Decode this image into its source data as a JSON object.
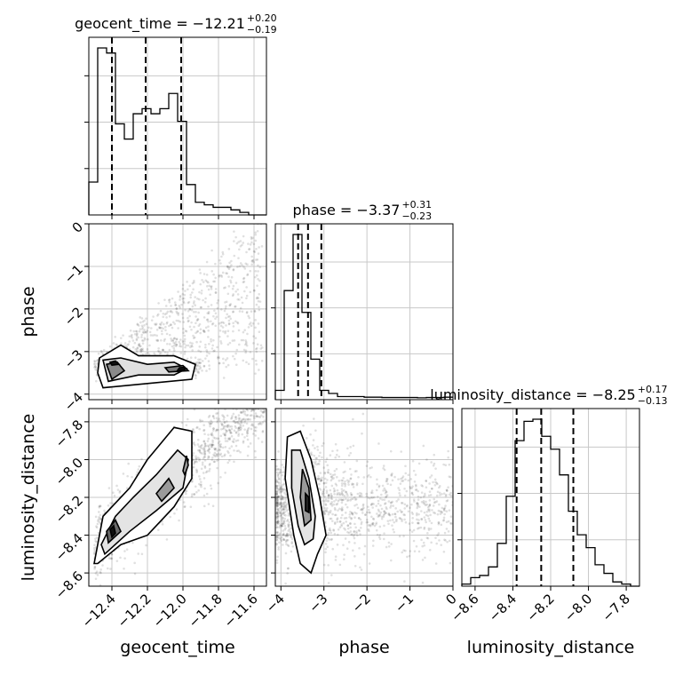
{
  "chart_data": {
    "type": "corner",
    "parameters": [
      "geocent_time",
      "phase",
      "luminosity_distance"
    ],
    "titles": [
      {
        "param": "geocent_time",
        "text": "geocent_time = −12.21",
        "upper": "+0.20",
        "lower": "−0.19"
      },
      {
        "param": "phase",
        "text": "phase = −3.37",
        "upper": "+0.31",
        "lower": "−0.23"
      },
      {
        "param": "luminosity_distance",
        "text": "luminosity_distance = −8.25",
        "upper": "+0.17",
        "lower": "−0.13"
      }
    ],
    "ranges": {
      "geocent_time": [
        -12.53,
        -11.53
      ],
      "phase": [
        -4.13,
        0.0
      ],
      "luminosity_distance": [
        -8.67,
        -7.73
      ]
    },
    "ticks": {
      "geocent_time": [
        -12.4,
        -12.2,
        -12.0,
        -11.8,
        -11.6
      ],
      "phase": [
        -4,
        -3,
        -2,
        -1,
        0
      ],
      "luminosity_distance": [
        -8.6,
        -8.4,
        -8.2,
        -8.0,
        -7.8
      ]
    },
    "tick_labels": {
      "geocent_time": [
        "−12.4",
        "−12.2",
        "−12.0",
        "−11.8",
        "−11.6"
      ],
      "phase": [
        "−4",
        "−3",
        "−2",
        "−1",
        "0"
      ],
      "luminosity_distance": [
        "−8.6",
        "−8.4",
        "−8.2",
        "−8.0",
        "−7.8"
      ]
    },
    "quantiles": {
      "geocent_time": [
        -12.4,
        -12.21,
        -12.01
      ],
      "phase": [
        -3.6,
        -3.37,
        -3.06
      ],
      "luminosity_distance": [
        -8.38,
        -8.25,
        -8.08
      ]
    },
    "histograms": {
      "geocent_time": {
        "edges_start": -12.53,
        "bin_width": 0.05,
        "counts": [
          13,
          66,
          64,
          36,
          30,
          40,
          42,
          40,
          42,
          48,
          37,
          12,
          5,
          4,
          3,
          3,
          2,
          1,
          0,
          0
        ]
      },
      "phase": {
        "edges_start": -4.13,
        "bin_width": 0.2065,
        "counts": [
          3,
          35,
          53,
          28,
          13,
          3,
          2,
          1,
          1,
          1,
          0.8,
          0.8,
          0.7,
          0.7,
          0.7,
          0.7,
          0.6,
          0.7,
          0.7,
          0.8
        ]
      },
      "luminosity_distance": {
        "edges_start": -8.67,
        "bin_width": 0.047,
        "counts": [
          1,
          4,
          5,
          9,
          20,
          42,
          68,
          77,
          78,
          70,
          64,
          52,
          35,
          24,
          18,
          10,
          6,
          2,
          1,
          0
        ]
      }
    },
    "scatter_density_centers": {
      "phase_vs_geocent_time": [
        [
          -12.4,
          -3.4
        ],
        [
          -12.0,
          -3.4
        ],
        [
          -12.15,
          -3.43
        ]
      ],
      "luminosity_distance_vs_geocent_time": [
        [
          -12.4,
          -8.36
        ],
        [
          -12.1,
          -8.15
        ],
        [
          -12.0,
          -8.0
        ]
      ],
      "luminosity_distance_vs_phase": [
        [
          -3.37,
          -8.2
        ],
        [
          -3.5,
          -8.05
        ]
      ]
    },
    "grid": true,
    "legend": "none"
  }
}
